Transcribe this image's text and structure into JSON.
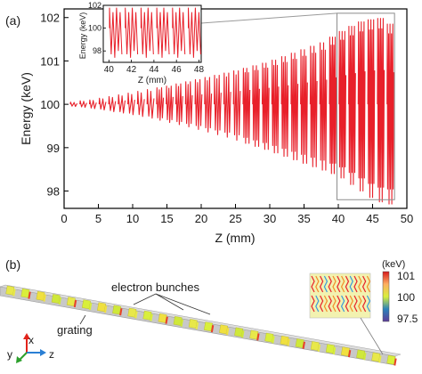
{
  "figure": {
    "panel_a_label": "(a)",
    "panel_b_label": "(b)"
  },
  "chart_data": [
    {
      "type": "line",
      "xlabel": "Z (mm)",
      "ylabel": "Energy (keV)",
      "xlim": [
        0,
        50
      ],
      "ylim": [
        97.6,
        102.2
      ],
      "xticks": [
        "0",
        "5",
        "10",
        "15",
        "20",
        "25",
        "30",
        "35",
        "40",
        "45",
        "50"
      ],
      "yticks": [
        "98",
        "99",
        "100",
        "101",
        "102"
      ],
      "grid": false,
      "series_color": "#e8202a",
      "bunch_oscillations": {
        "z_mm": [
          1.4,
          2.8,
          4.2,
          5.6,
          7.0,
          8.4,
          9.8,
          11.2,
          12.6,
          14.0,
          15.4,
          16.8,
          18.2,
          19.6,
          21.0,
          22.4,
          23.8,
          25.2,
          26.6,
          28.0,
          29.4,
          30.8,
          32.2,
          33.6,
          35.0,
          36.4,
          37.8,
          39.2,
          40.6,
          42.0,
          43.4,
          44.8,
          46.2,
          47.6
        ],
        "energy_max_keV": [
          100.05,
          100.08,
          100.1,
          100.14,
          100.18,
          100.22,
          100.26,
          100.3,
          100.34,
          100.38,
          100.42,
          100.47,
          100.52,
          100.57,
          100.62,
          100.67,
          100.72,
          100.77,
          100.83,
          100.89,
          100.95,
          101.02,
          101.1,
          101.18,
          101.26,
          101.34,
          101.42,
          101.55,
          101.68,
          101.8,
          101.9,
          101.95,
          101.98,
          101.85
        ],
        "energy_min_keV": [
          99.95,
          99.93,
          99.9,
          99.87,
          99.83,
          99.8,
          99.76,
          99.72,
          99.68,
          99.63,
          99.58,
          99.53,
          99.48,
          99.42,
          99.36,
          99.3,
          99.24,
          99.17,
          99.1,
          99.03,
          98.96,
          98.88,
          98.8,
          98.72,
          98.64,
          98.56,
          98.48,
          98.4,
          98.3,
          98.15,
          98.0,
          97.85,
          97.75,
          97.7
        ]
      },
      "zoom_box_xlim": [
        39.8,
        48.2
      ],
      "zoom_box_ylim": [
        97.8,
        102.1
      ]
    },
    {
      "type": "line",
      "xlabel": "Z (mm)",
      "ylabel": "Energy (keV)",
      "xlim": [
        39.5,
        48.2
      ],
      "ylim": [
        97,
        102
      ],
      "xticks": [
        "40",
        "42",
        "44",
        "46",
        "48"
      ],
      "yticks": [
        "98",
        "100",
        "102"
      ],
      "bunch_groups_z_mm": [
        40.6,
        42.0,
        43.4,
        44.8,
        46.2,
        47.6
      ],
      "series_color": "#e8202a"
    }
  ],
  "panel_b": {
    "label_electron_bunches": "electron bunches",
    "label_grating": "grating",
    "axis_x": "x",
    "axis_y": "y",
    "axis_z": "z",
    "colorbar_unit": "(keV)",
    "colorbar_ticks": [
      "101",
      "100",
      "97.5"
    ]
  }
}
